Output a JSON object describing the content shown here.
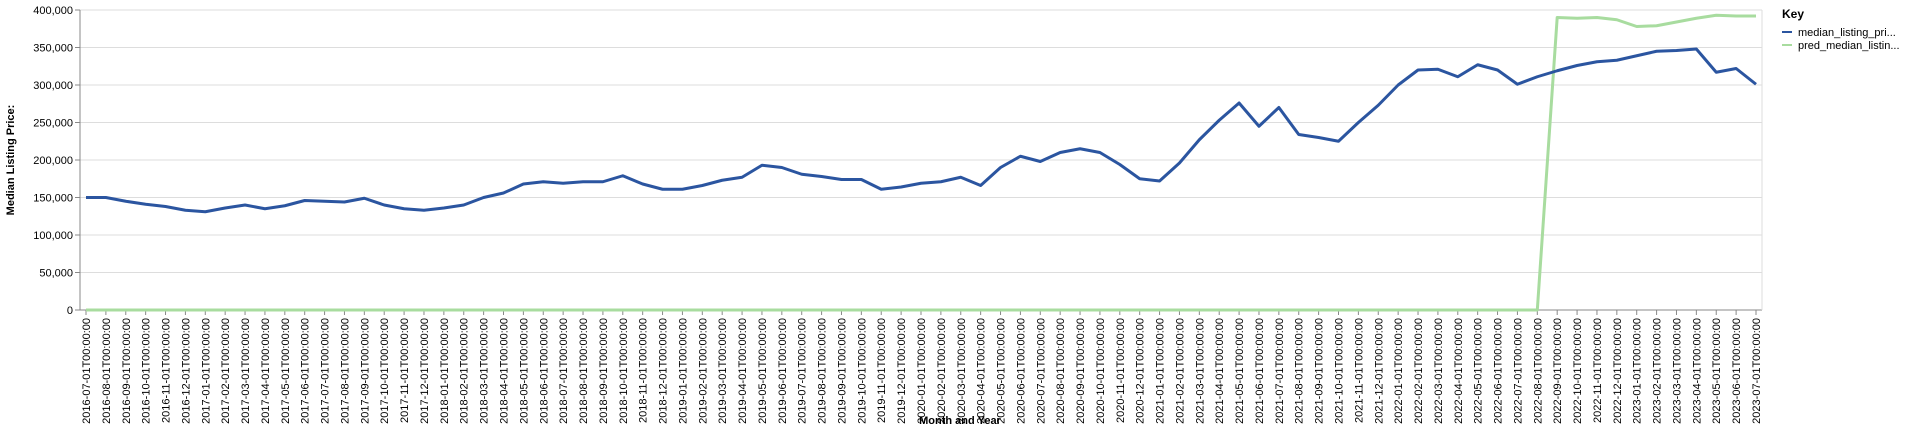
{
  "chart_data": {
    "type": "line",
    "x_label": "Month and Year",
    "y_label": "Median Listing Price:",
    "legend_title": "Key",
    "legend_position": "right",
    "grid": true,
    "categories": [
      "2016-07-01T00:00:00",
      "2016-08-01T00:00:00",
      "2016-09-01T00:00:00",
      "2016-10-01T00:00:00",
      "2016-11-01T00:00:00",
      "2016-12-01T00:00:00",
      "2017-01-01T00:00:00",
      "2017-02-01T00:00:00",
      "2017-03-01T00:00:00",
      "2017-04-01T00:00:00",
      "2017-05-01T00:00:00",
      "2017-06-01T00:00:00",
      "2017-07-01T00:00:00",
      "2017-08-01T00:00:00",
      "2017-09-01T00:00:00",
      "2017-10-01T00:00:00",
      "2017-11-01T00:00:00",
      "2017-12-01T00:00:00",
      "2018-01-01T00:00:00",
      "2018-02-01T00:00:00",
      "2018-03-01T00:00:00",
      "2018-04-01T00:00:00",
      "2018-05-01T00:00:00",
      "2018-06-01T00:00:00",
      "2018-07-01T00:00:00",
      "2018-08-01T00:00:00",
      "2018-09-01T00:00:00",
      "2018-10-01T00:00:00",
      "2018-11-01T00:00:00",
      "2018-12-01T00:00:00",
      "2019-01-01T00:00:00",
      "2019-02-01T00:00:00",
      "2019-03-01T00:00:00",
      "2019-04-01T00:00:00",
      "2019-05-01T00:00:00",
      "2019-06-01T00:00:00",
      "2019-07-01T00:00:00",
      "2019-08-01T00:00:00",
      "2019-09-01T00:00:00",
      "2019-10-01T00:00:00",
      "2019-11-01T00:00:00",
      "2019-12-01T00:00:00",
      "2020-01-01T00:00:00",
      "2020-02-01T00:00:00",
      "2020-03-01T00:00:00",
      "2020-04-01T00:00:00",
      "2020-05-01T00:00:00",
      "2020-06-01T00:00:00",
      "2020-07-01T00:00:00",
      "2020-08-01T00:00:00",
      "2020-09-01T00:00:00",
      "2020-10-01T00:00:00",
      "2020-11-01T00:00:00",
      "2020-12-01T00:00:00",
      "2021-01-01T00:00:00",
      "2021-02-01T00:00:00",
      "2021-03-01T00:00:00",
      "2021-04-01T00:00:00",
      "2021-05-01T00:00:00",
      "2021-06-01T00:00:00",
      "2021-07-01T00:00:00",
      "2021-08-01T00:00:00",
      "2021-09-01T00:00:00",
      "2021-10-01T00:00:00",
      "2021-11-01T00:00:00",
      "2021-12-01T00:00:00",
      "2022-01-01T00:00:00",
      "2022-02-01T00:00:00",
      "2022-03-01T00:00:00",
      "2022-04-01T00:00:00",
      "2022-05-01T00:00:00",
      "2022-06-01T00:00:00",
      "2022-07-01T00:00:00",
      "2022-08-01T00:00:00",
      "2022-09-01T00:00:00",
      "2022-10-01T00:00:00",
      "2022-11-01T00:00:00",
      "2022-12-01T00:00:00",
      "2023-01-01T00:00:00",
      "2023-02-01T00:00:00",
      "2023-03-01T00:00:00",
      "2023-04-01T00:00:00",
      "2023-05-01T00:00:00",
      "2023-06-01T00:00:00",
      "2023-07-01T00:00:00"
    ],
    "series": [
      {
        "name": "median_listing_pri...",
        "color": "#2b55a0",
        "values": [
          150000,
          150000,
          145000,
          141000,
          138000,
          133000,
          131000,
          136000,
          140000,
          135000,
          139000,
          146000,
          145000,
          144000,
          149000,
          140000,
          135000,
          133000,
          136000,
          140000,
          150000,
          156000,
          168000,
          171000,
          169000,
          171000,
          171000,
          179000,
          168000,
          161000,
          161000,
          166000,
          173000,
          177000,
          193000,
          190000,
          181000,
          178000,
          174000,
          174000,
          161000,
          164000,
          169000,
          171000,
          177000,
          166000,
          190000,
          205000,
          198000,
          210000,
          215000,
          210000,
          194000,
          175000,
          172000,
          196000,
          227000,
          253000,
          276000,
          245000,
          270000,
          234000,
          230000,
          225000,
          250000,
          273000,
          300000,
          320000,
          321000,
          311000,
          327000,
          320000,
          301000,
          311000,
          319000,
          326000,
          331000,
          333000,
          339000,
          345000,
          346000,
          348000,
          317000,
          322000,
          301000
        ]
      },
      {
        "name": "pred_median_listin...",
        "color": "#a8dc9f",
        "values": [
          0,
          0,
          0,
          0,
          0,
          0,
          0,
          0,
          0,
          0,
          0,
          0,
          0,
          0,
          0,
          0,
          0,
          0,
          0,
          0,
          0,
          0,
          0,
          0,
          0,
          0,
          0,
          0,
          0,
          0,
          0,
          0,
          0,
          0,
          0,
          0,
          0,
          0,
          0,
          0,
          0,
          0,
          0,
          0,
          0,
          0,
          0,
          0,
          0,
          0,
          0,
          0,
          0,
          0,
          0,
          0,
          0,
          0,
          0,
          0,
          0,
          0,
          0,
          0,
          0,
          0,
          0,
          0,
          0,
          0,
          0,
          0,
          0,
          0,
          390000,
          389000,
          390000,
          387000,
          378000,
          379000,
          384000,
          389000,
          393000,
          392000,
          392000
        ]
      }
    ],
    "ylim": [
      0,
      400000
    ],
    "yticks": [
      0,
      {
        "value": 50000,
        "label": "50,000"
      },
      {
        "value": 100000,
        "label": "100,000"
      },
      {
        "value": 150000,
        "label": "150,000"
      },
      {
        "value": 200000,
        "label": "200,000"
      },
      {
        "value": 250000,
        "label": "250,000"
      },
      {
        "value": 300000,
        "label": "300,000"
      },
      {
        "value": 350000,
        "label": "350,000"
      },
      {
        "value": 400000,
        "label": "400,000"
      }
    ]
  }
}
